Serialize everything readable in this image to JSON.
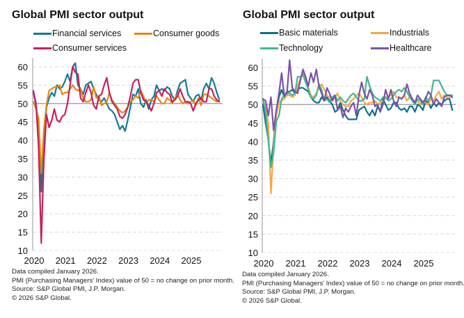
{
  "chart_data": [
    {
      "type": "line",
      "title": "Global PMI sector output",
      "xlabel": "",
      "ylabel": "",
      "ylim": [
        10,
        62
      ],
      "yticks": [
        10,
        15,
        20,
        25,
        30,
        35,
        40,
        45,
        50,
        55,
        60
      ],
      "xtick_labels": [
        "2020",
        "2021",
        "2022",
        "2023",
        "2024",
        "2025"
      ],
      "x_start": "2020-01",
      "x_frequency": "monthly",
      "reference_line": 50,
      "grid": "horizontal dashed",
      "legend_position": "top",
      "series": [
        {
          "name": "Financial services",
          "color": "#137a93",
          "values": [
            53.0,
            49.5,
            43.0,
            26.0,
            40.5,
            49.0,
            51.5,
            53.0,
            52.0,
            55.0,
            54.0,
            54.5,
            56.0,
            58.0,
            56.0,
            60.0,
            61.0,
            55.0,
            54.0,
            52.5,
            55.0,
            55.5,
            56.0,
            54.0,
            52.5,
            51.0,
            50.5,
            51.5,
            50.0,
            48.5,
            48.0,
            47.0,
            45.0,
            43.0,
            44.0,
            42.5,
            45.5,
            49.0,
            52.5,
            52.0,
            54.0,
            50.0,
            49.0,
            51.0,
            48.5,
            51.0,
            52.0,
            55.0,
            53.5,
            54.0,
            53.5,
            54.5,
            54.0,
            52.0,
            51.0,
            53.5,
            55.5,
            56.0,
            56.5,
            52.5,
            51.5,
            50.5,
            52.0,
            52.5,
            51.0,
            54.0,
            55.5,
            54.0,
            57.0,
            55.5,
            53.0,
            51.0
          ]
        },
        {
          "name": "Consumer goods",
          "color": "#e6870f",
          "values": [
            50.5,
            48.5,
            46.0,
            31.0,
            43.0,
            49.5,
            53.5,
            54.0,
            54.5,
            54.5,
            55.0,
            52.5,
            53.0,
            53.0,
            54.0,
            55.0,
            54.0,
            53.5,
            54.0,
            51.5,
            50.5,
            50.5,
            51.0,
            54.5,
            51.5,
            52.0,
            49.5,
            50.0,
            50.5,
            53.0,
            51.0,
            50.0,
            49.0,
            48.0,
            47.5,
            48.0,
            49.0,
            50.5,
            51.0,
            52.0,
            51.5,
            53.5,
            52.0,
            50.0,
            51.0,
            51.0,
            50.5,
            52.0,
            51.0,
            50.0,
            50.0,
            51.5,
            51.0,
            50.0,
            51.5,
            52.5,
            51.0,
            50.0,
            50.5,
            50.0,
            50.5,
            51.0,
            49.5,
            51.5,
            49.5,
            52.5,
            52.5,
            52.0,
            51.5,
            51.0,
            50.5,
            51.0
          ]
        },
        {
          "name": "Consumer services",
          "color": "#c8205c",
          "values": [
            53.5,
            50.0,
            38.0,
            12.0,
            35.0,
            47.0,
            43.5,
            45.5,
            48.5,
            45.5,
            45.0,
            46.5,
            47.0,
            50.0,
            55.0,
            60.0,
            58.5,
            58.0,
            51.5,
            50.5,
            53.0,
            55.0,
            53.0,
            49.5,
            48.5,
            52.0,
            52.5,
            55.0,
            57.0,
            53.0,
            50.5,
            49.5,
            48.5,
            46.5,
            46.0,
            47.0,
            49.0,
            52.0,
            55.5,
            56.5,
            56.5,
            53.0,
            51.0,
            50.5,
            49.5,
            48.0,
            50.0,
            53.0,
            53.5,
            52.0,
            54.0,
            53.0,
            52.5,
            50.5,
            51.0,
            52.0,
            54.0,
            52.0,
            50.5,
            50.5,
            50.0,
            48.0,
            50.0,
            51.0,
            51.5,
            50.5,
            50.5,
            54.0,
            54.0,
            52.0,
            51.0,
            50.5
          ]
        }
      ]
    },
    {
      "type": "line",
      "title": "Global PMI sector output",
      "xlabel": "",
      "ylabel": "",
      "ylim": [
        10,
        62
      ],
      "yticks": [
        10,
        15,
        20,
        25,
        30,
        35,
        40,
        45,
        50,
        55,
        60
      ],
      "xtick_labels": [
        "2020",
        "2021",
        "2022",
        "2023",
        "2024",
        "2025"
      ],
      "x_start": "2020-01",
      "x_frequency": "monthly",
      "reference_line": 50,
      "grid": "horizontal dashed",
      "legend_position": "top",
      "series": [
        {
          "name": "Basic materials",
          "color": "#0f6f8c",
          "values": [
            50.0,
            45.0,
            40.5,
            34.0,
            40.0,
            47.5,
            52.0,
            54.0,
            52.0,
            53.5,
            53.5,
            54.0,
            53.0,
            54.0,
            54.5,
            54.5,
            54.0,
            53.5,
            52.0,
            51.0,
            50.5,
            50.5,
            52.0,
            51.0,
            52.0,
            51.0,
            50.0,
            48.0,
            48.5,
            50.5,
            48.5,
            47.0,
            46.0,
            46.0,
            46.0,
            46.0,
            48.5,
            49.0,
            49.5,
            48.0,
            47.0,
            48.5,
            47.0,
            49.5,
            48.0,
            51.5,
            50.0,
            48.5,
            49.0,
            50.5,
            50.5,
            49.0,
            48.5,
            49.0,
            48.0,
            49.5,
            49.5,
            48.0,
            50.0,
            49.5,
            48.5,
            51.0,
            50.5,
            49.0,
            50.5,
            49.5,
            50.5,
            50.0,
            51.0,
            51.5,
            51.5,
            48.5
          ]
        },
        {
          "name": "Industrials",
          "color": "#f5a742",
          "values": [
            51.0,
            49.5,
            45.0,
            26.0,
            39.0,
            47.0,
            50.5,
            51.0,
            51.5,
            52.5,
            52.5,
            52.0,
            52.5,
            55.0,
            57.0,
            58.5,
            56.5,
            54.5,
            52.5,
            52.0,
            53.0,
            54.5,
            55.5,
            54.0,
            52.5,
            52.0,
            51.0,
            52.0,
            53.0,
            51.0,
            50.0,
            49.5,
            49.5,
            51.0,
            51.5,
            52.5,
            53.0,
            52.0,
            50.5,
            50.0,
            50.5,
            50.5,
            51.0,
            50.0,
            50.5,
            51.0,
            51.5,
            52.0,
            52.5,
            53.5,
            52.0,
            52.0,
            51.5,
            52.5,
            51.0,
            52.0,
            51.5,
            50.5,
            51.0,
            50.0,
            51.0,
            50.5,
            50.0,
            51.5,
            51.0,
            52.5,
            53.5,
            51.5,
            52.5,
            52.0,
            52.0,
            52.0
          ]
        },
        {
          "name": "Technology",
          "color": "#3cb894",
          "values": [
            51.5,
            48.0,
            40.0,
            33.0,
            37.0,
            45.5,
            47.0,
            51.5,
            52.5,
            53.0,
            53.0,
            52.5,
            53.0,
            57.5,
            57.5,
            58.0,
            56.0,
            54.0,
            52.0,
            51.5,
            52.5,
            55.5,
            54.0,
            51.0,
            51.5,
            50.5,
            52.0,
            52.5,
            51.0,
            52.0,
            51.0,
            50.5,
            51.5,
            52.5,
            53.0,
            52.0,
            51.0,
            51.0,
            51.5,
            57.5,
            55.0,
            53.0,
            52.0,
            51.5,
            51.0,
            52.0,
            52.0,
            51.0,
            51.5,
            52.5,
            53.5,
            54.0,
            53.5,
            54.5,
            53.5,
            52.0,
            51.0,
            50.0,
            51.5,
            51.0,
            50.0,
            52.0,
            51.0,
            52.5,
            56.5,
            56.5,
            56.5,
            55.0,
            53.5,
            52.5,
            52.5,
            52.5
          ]
        },
        {
          "name": "Healthcare",
          "color": "#7b52a8",
          "values": [
            51.5,
            51.0,
            47.0,
            52.0,
            43.0,
            48.5,
            53.0,
            58.5,
            52.5,
            53.0,
            62.0,
            54.5,
            53.5,
            53.0,
            56.5,
            59.5,
            57.5,
            55.0,
            58.5,
            56.0,
            59.5,
            55.0,
            53.0,
            51.0,
            54.5,
            53.0,
            51.0,
            52.5,
            48.5,
            49.5,
            46.5,
            49.0,
            48.0,
            49.5,
            50.5,
            47.0,
            52.5,
            56.0,
            53.0,
            51.5,
            54.0,
            52.5,
            49.5,
            50.0,
            48.0,
            50.0,
            54.0,
            51.5,
            54.0,
            51.0,
            49.5,
            52.0,
            51.5,
            52.5,
            55.5,
            53.0,
            51.5,
            50.5,
            52.5,
            51.5,
            50.5,
            51.5,
            53.5,
            52.5,
            50.0,
            51.5,
            50.5,
            49.5,
            52.0,
            52.5,
            52.5,
            52.0
          ]
        }
      ]
    }
  ],
  "panels": [
    {
      "title": "Global PMI sector output",
      "legend": [
        "Financial services",
        "Consumer goods",
        "Consumer services"
      ],
      "notes": [
        "Data compiled January 2026.",
        "PMI (Purchasing Managers' Index) value of 50 = no change on prior month.",
        "Source: S&P Global PMI, J.P. Morgan.",
        "© 2026 S&P Global."
      ]
    },
    {
      "title": "Global PMI sector output",
      "legend": [
        "Basic materials",
        "Industrials",
        "Technology",
        "Healthcare"
      ],
      "notes": [
        "Data compiled January 2026.",
        "PMI (Purchasing Managers' Index) value of 50 = no change on prior month.",
        "Source: S&P Global PMI, J.P. Morgan.",
        "© 2026 S&P Global."
      ]
    }
  ]
}
